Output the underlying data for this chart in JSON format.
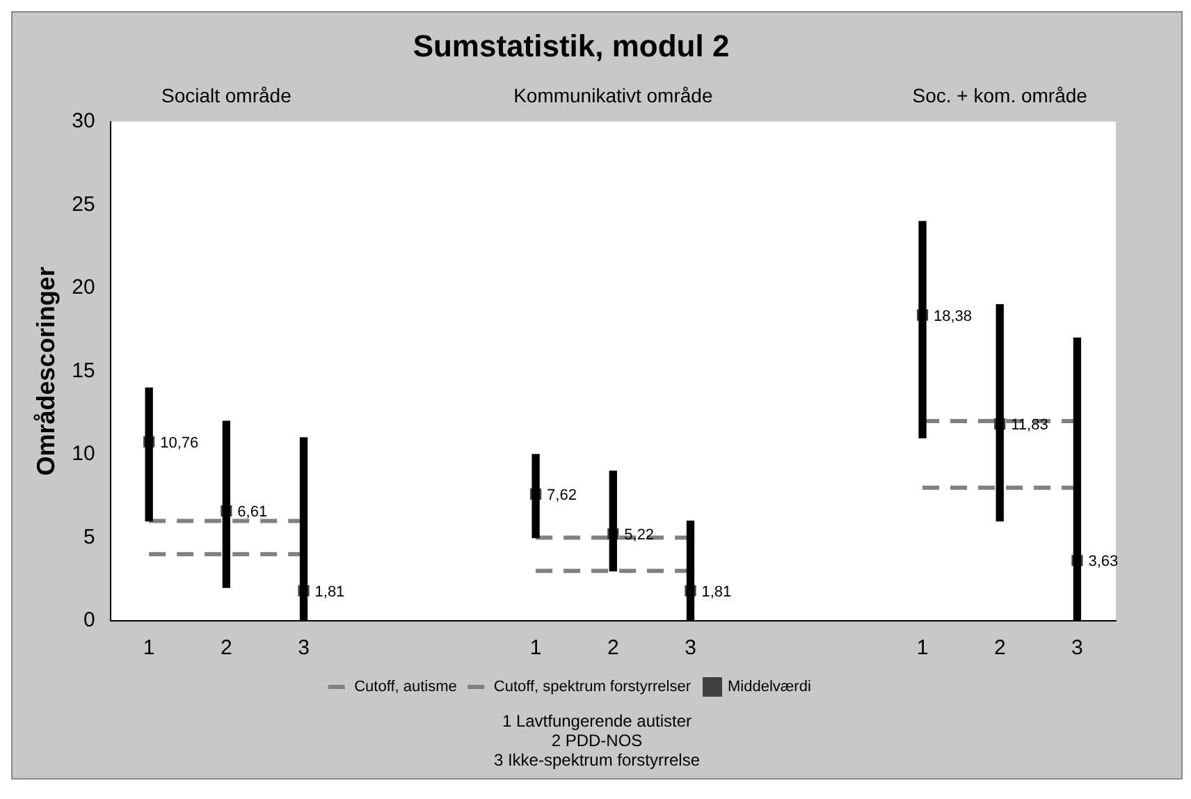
{
  "chart_data": {
    "type": "bar",
    "title": "Sumstatistik, modul 2",
    "ylabel": "Områdescoringer",
    "categories": [
      "1",
      "2",
      "3",
      null,
      null,
      "1",
      "2",
      "3",
      null,
      null,
      "1",
      "2",
      "3"
    ],
    "series": [
      {
        "color": "#000000",
        "base": [
          6,
          2,
          0,
          null,
          null,
          5,
          3,
          0,
          null,
          null,
          11,
          6,
          0
        ],
        "values": [
          8,
          10,
          11,
          null,
          null,
          5,
          6,
          6,
          null,
          null,
          13,
          13,
          17
        ]
      },
      {
        "name": "Cutoff, autisme",
        "type": "line",
        "color": "#808080",
        "line_style": "dashed",
        "marker": "none",
        "values": [
          6,
          6,
          6,
          null,
          null,
          5,
          5,
          5,
          null,
          null,
          12,
          12,
          12
        ]
      },
      {
        "name": "Cutoff, spektrum forstyrrelser",
        "type": "line",
        "color": "#808080",
        "line_style": "dashed",
        "marker": "none",
        "values": [
          4,
          4,
          4,
          null,
          null,
          3,
          3,
          3,
          null,
          null,
          8,
          8,
          8
        ]
      },
      {
        "name": "Middelværdi",
        "type": "scatter",
        "color": "#404040",
        "marker": "square",
        "values": [
          10.76,
          6.61,
          1.81,
          null,
          null,
          7.62,
          5.22,
          1.81,
          null,
          null,
          18.38,
          11.83,
          3.63
        ],
        "value_labels": [
          "10,76",
          "6,61",
          "1,81",
          null,
          null,
          "7,62",
          "5,22",
          "1,81",
          null,
          null,
          "18,38",
          "11,83",
          "3,63"
        ]
      }
    ],
    "ylim": [
      0,
      30
    ],
    "yticks": [
      0,
      5,
      10,
      15,
      20,
      25,
      30
    ],
    "grid": false,
    "legend": "bottom",
    "annotations": [
      "Socialt område",
      "Kommunikativt område",
      "Soc. + kom. område",
      "1 Lavtfungerende autister",
      "2 PDD-NOS",
      "3 Ikke-spektrum forstyrrelse"
    ]
  }
}
